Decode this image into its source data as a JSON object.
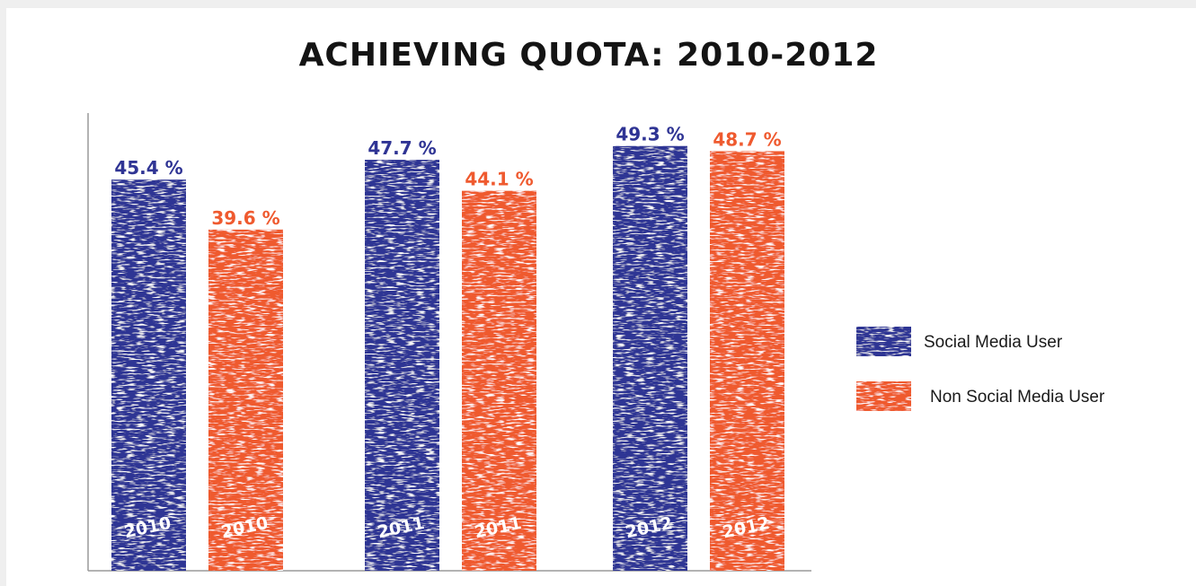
{
  "chart_data": {
    "type": "bar",
    "title": "ACHIEVING QUOTA: 2010-2012",
    "categories": [
      "2010",
      "2011",
      "2012"
    ],
    "series": [
      {
        "name": "Social Media User",
        "values": [
          45.4,
          47.7,
          49.3
        ],
        "labels": [
          "45.4 %",
          "47.7 %",
          "49.3 %"
        ],
        "bar_text": [
          "2010",
          "2011",
          "2012"
        ],
        "color": "#2f3494",
        "label_color": "#2f3494"
      },
      {
        "name": "Non Social Media User",
        "values": [
          39.6,
          44.1,
          48.7
        ],
        "labels": [
          "39.6 %",
          "44.1 %",
          "48.7 %"
        ],
        "bar_text": [
          "2010",
          "2011",
          "2012"
        ],
        "color": "#ef5a2f",
        "label_color": "#ef5a2f"
      }
    ],
    "xlabel": "",
    "ylabel": "",
    "ylim": [
      0,
      50
    ],
    "grid": false,
    "legend_position": "right"
  }
}
